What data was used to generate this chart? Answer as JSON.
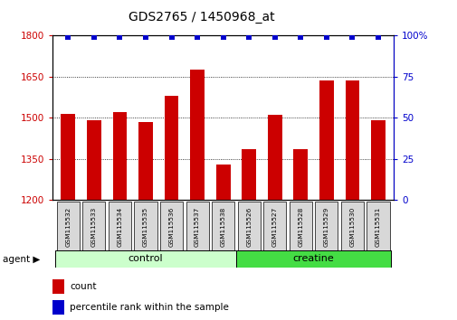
{
  "title": "GDS2765 / 1450968_at",
  "samples": [
    "GSM115532",
    "GSM115533",
    "GSM115534",
    "GSM115535",
    "GSM115536",
    "GSM115537",
    "GSM115538",
    "GSM115526",
    "GSM115527",
    "GSM115528",
    "GSM115529",
    "GSM115530",
    "GSM115531"
  ],
  "counts": [
    1515,
    1490,
    1520,
    1485,
    1580,
    1675,
    1330,
    1385,
    1510,
    1385,
    1635,
    1635,
    1490
  ],
  "percentile": [
    99,
    99,
    99,
    99,
    99,
    99,
    99,
    99,
    99,
    99,
    99,
    99,
    99
  ],
  "groups": [
    "control",
    "control",
    "control",
    "control",
    "control",
    "control",
    "control",
    "creatine",
    "creatine",
    "creatine",
    "creatine",
    "creatine",
    "creatine"
  ],
  "ylim_left": [
    1200,
    1800
  ],
  "ylim_right": [
    0,
    100
  ],
  "yticks_left": [
    1200,
    1350,
    1500,
    1650,
    1800
  ],
  "yticks_right": [
    0,
    25,
    50,
    75,
    100
  ],
  "bar_color": "#CC0000",
  "dot_color": "#0000CC",
  "control_color": "#CCFFCC",
  "creatine_color": "#44DD44",
  "bg_color": "#D8D8D8",
  "left_label_color": "#CC0000",
  "right_label_color": "#0000CC",
  "percentile_value": 99
}
